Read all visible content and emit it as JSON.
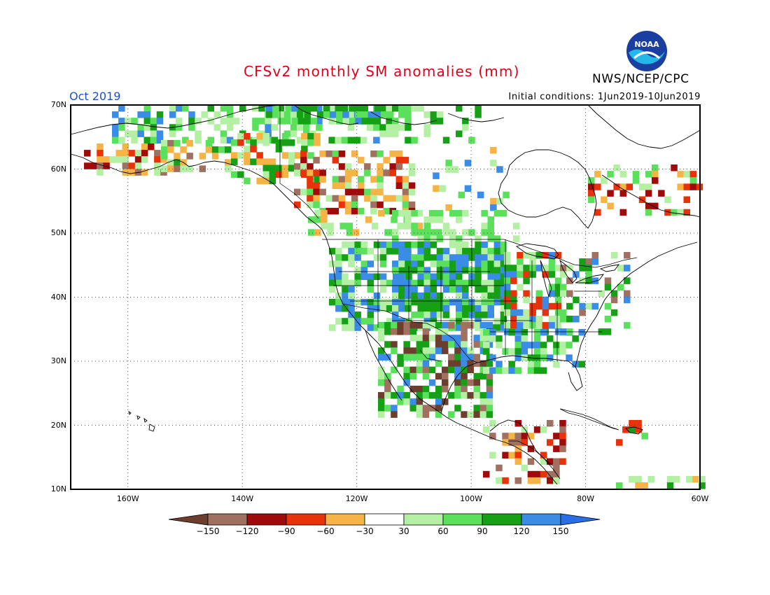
{
  "header": {
    "title": "CFSv2 monthly SM anomalies (mm)",
    "agency": "NWS/NCEP/CPC",
    "valid": "Oct 2019",
    "initial_conditions": "Initial conditions: 1Jun2019-10Jun2019",
    "logo_text": "NOAA"
  },
  "map": {
    "extent": {
      "lon_min": -170,
      "lon_max": -60,
      "lat_min": 10,
      "lat_max": 70
    },
    "lat_labels": [
      "70N",
      "60N",
      "50N",
      "40N",
      "30N",
      "20N",
      "10N"
    ],
    "lon_labels": [
      "160W",
      "140W",
      "120W",
      "100W",
      "80W",
      "60W"
    ],
    "gridlines": "dotted"
  },
  "colorbar": {
    "labels": [
      "−150",
      "−120",
      "−90",
      "−60",
      "−30",
      "30",
      "60",
      "90",
      "120",
      "150"
    ],
    "colors": [
      "#6b3e2e",
      "#a07060",
      "#a00a0a",
      "#e8320a",
      "#f7b446",
      "#ffffff",
      "#b4f0a4",
      "#5ae05a",
      "#16a016",
      "#3a8ce6",
      "#2a6ee6"
    ]
  }
}
